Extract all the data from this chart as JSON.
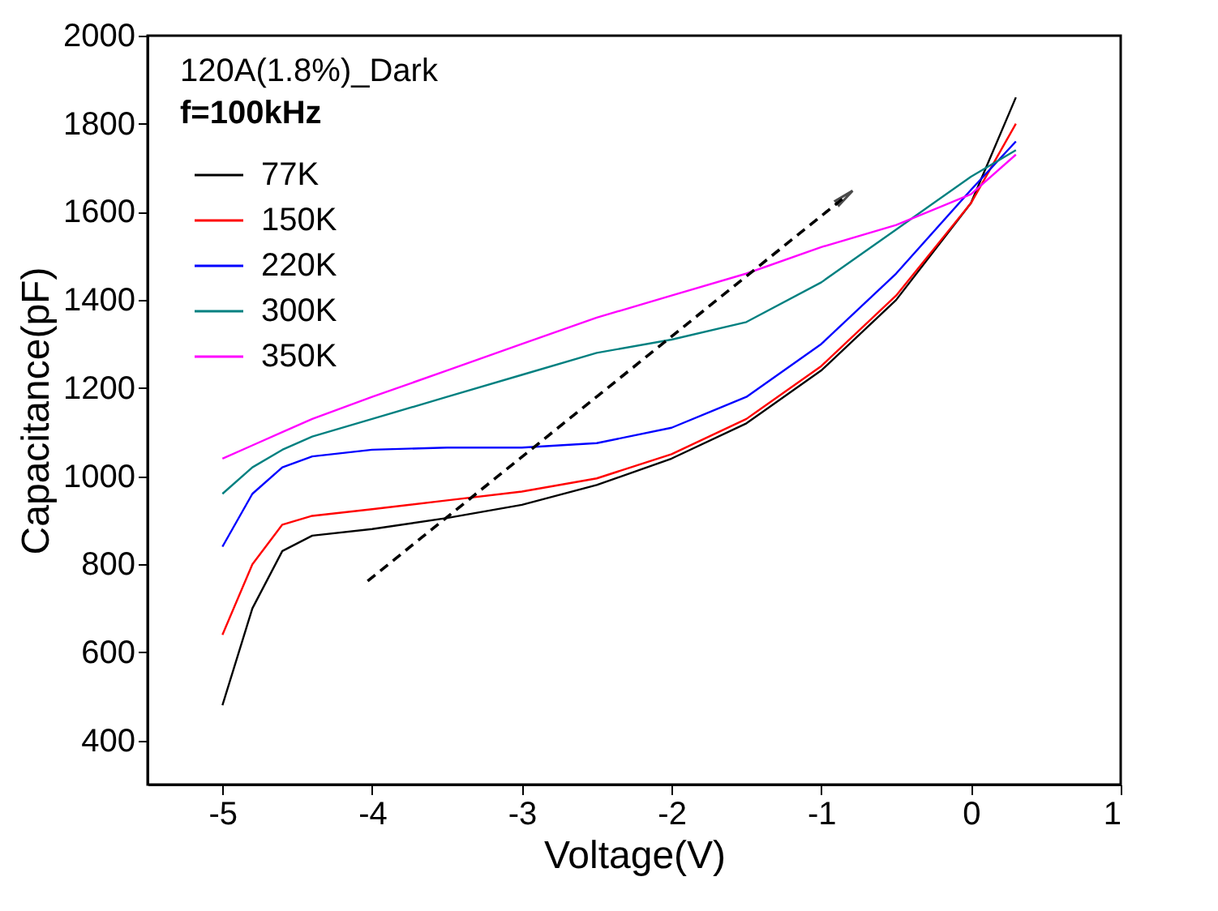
{
  "chart_data": {
    "type": "line",
    "xlabel": "Voltage(V)",
    "ylabel": "Capacitance(pF)",
    "legend_title": "120A(1.8%)_Dark",
    "annotations": [
      "f=100kHz"
    ],
    "xlim": [
      -5.5,
      1
    ],
    "xticks": [
      -5,
      -4,
      -3,
      -2,
      -1,
      0,
      1
    ],
    "ylim": [
      300,
      2000
    ],
    "yticks": [
      400,
      600,
      800,
      1000,
      1200,
      1400,
      1600,
      1800,
      2000
    ],
    "x": [
      -5,
      -4.8,
      -4.6,
      -4.4,
      -4,
      -3.5,
      -3,
      -2.5,
      -2,
      -1.5,
      -1,
      -0.5,
      0,
      0.3
    ],
    "legend": "top left",
    "grid": false,
    "line_style": "solid",
    "series": [
      {
        "name": "77K",
        "color": "#000000",
        "values": [
          480,
          700,
          830,
          865,
          880,
          905,
          935,
          980,
          1040,
          1120,
          1240,
          1400,
          1620,
          1860
        ]
      },
      {
        "name": "150K",
        "color": "#ff0000",
        "values": [
          640,
          800,
          890,
          910,
          925,
          945,
          965,
          995,
          1050,
          1130,
          1250,
          1410,
          1620,
          1800
        ]
      },
      {
        "name": "220K",
        "color": "#0000ff",
        "values": [
          840,
          960,
          1020,
          1045,
          1060,
          1065,
          1065,
          1075,
          1110,
          1180,
          1300,
          1460,
          1650,
          1760
        ]
      },
      {
        "name": "300K",
        "color": "#008080",
        "values": [
          960,
          1020,
          1060,
          1090,
          1130,
          1180,
          1230,
          1280,
          1310,
          1350,
          1440,
          1560,
          1680,
          1740
        ]
      },
      {
        "name": "350K",
        "color": "#ff00ff",
        "values": [
          1040,
          1070,
          1100,
          1130,
          1180,
          1240,
          1300,
          1360,
          1410,
          1460,
          1520,
          1570,
          1640,
          1730
        ]
      },
      {
        "type": "line",
        "line_style": "dashed",
        "color": "#000000",
        "x": [
          -4.03,
          -0.86
        ],
        "values": [
          762,
          1629
        ]
      }
    ]
  }
}
